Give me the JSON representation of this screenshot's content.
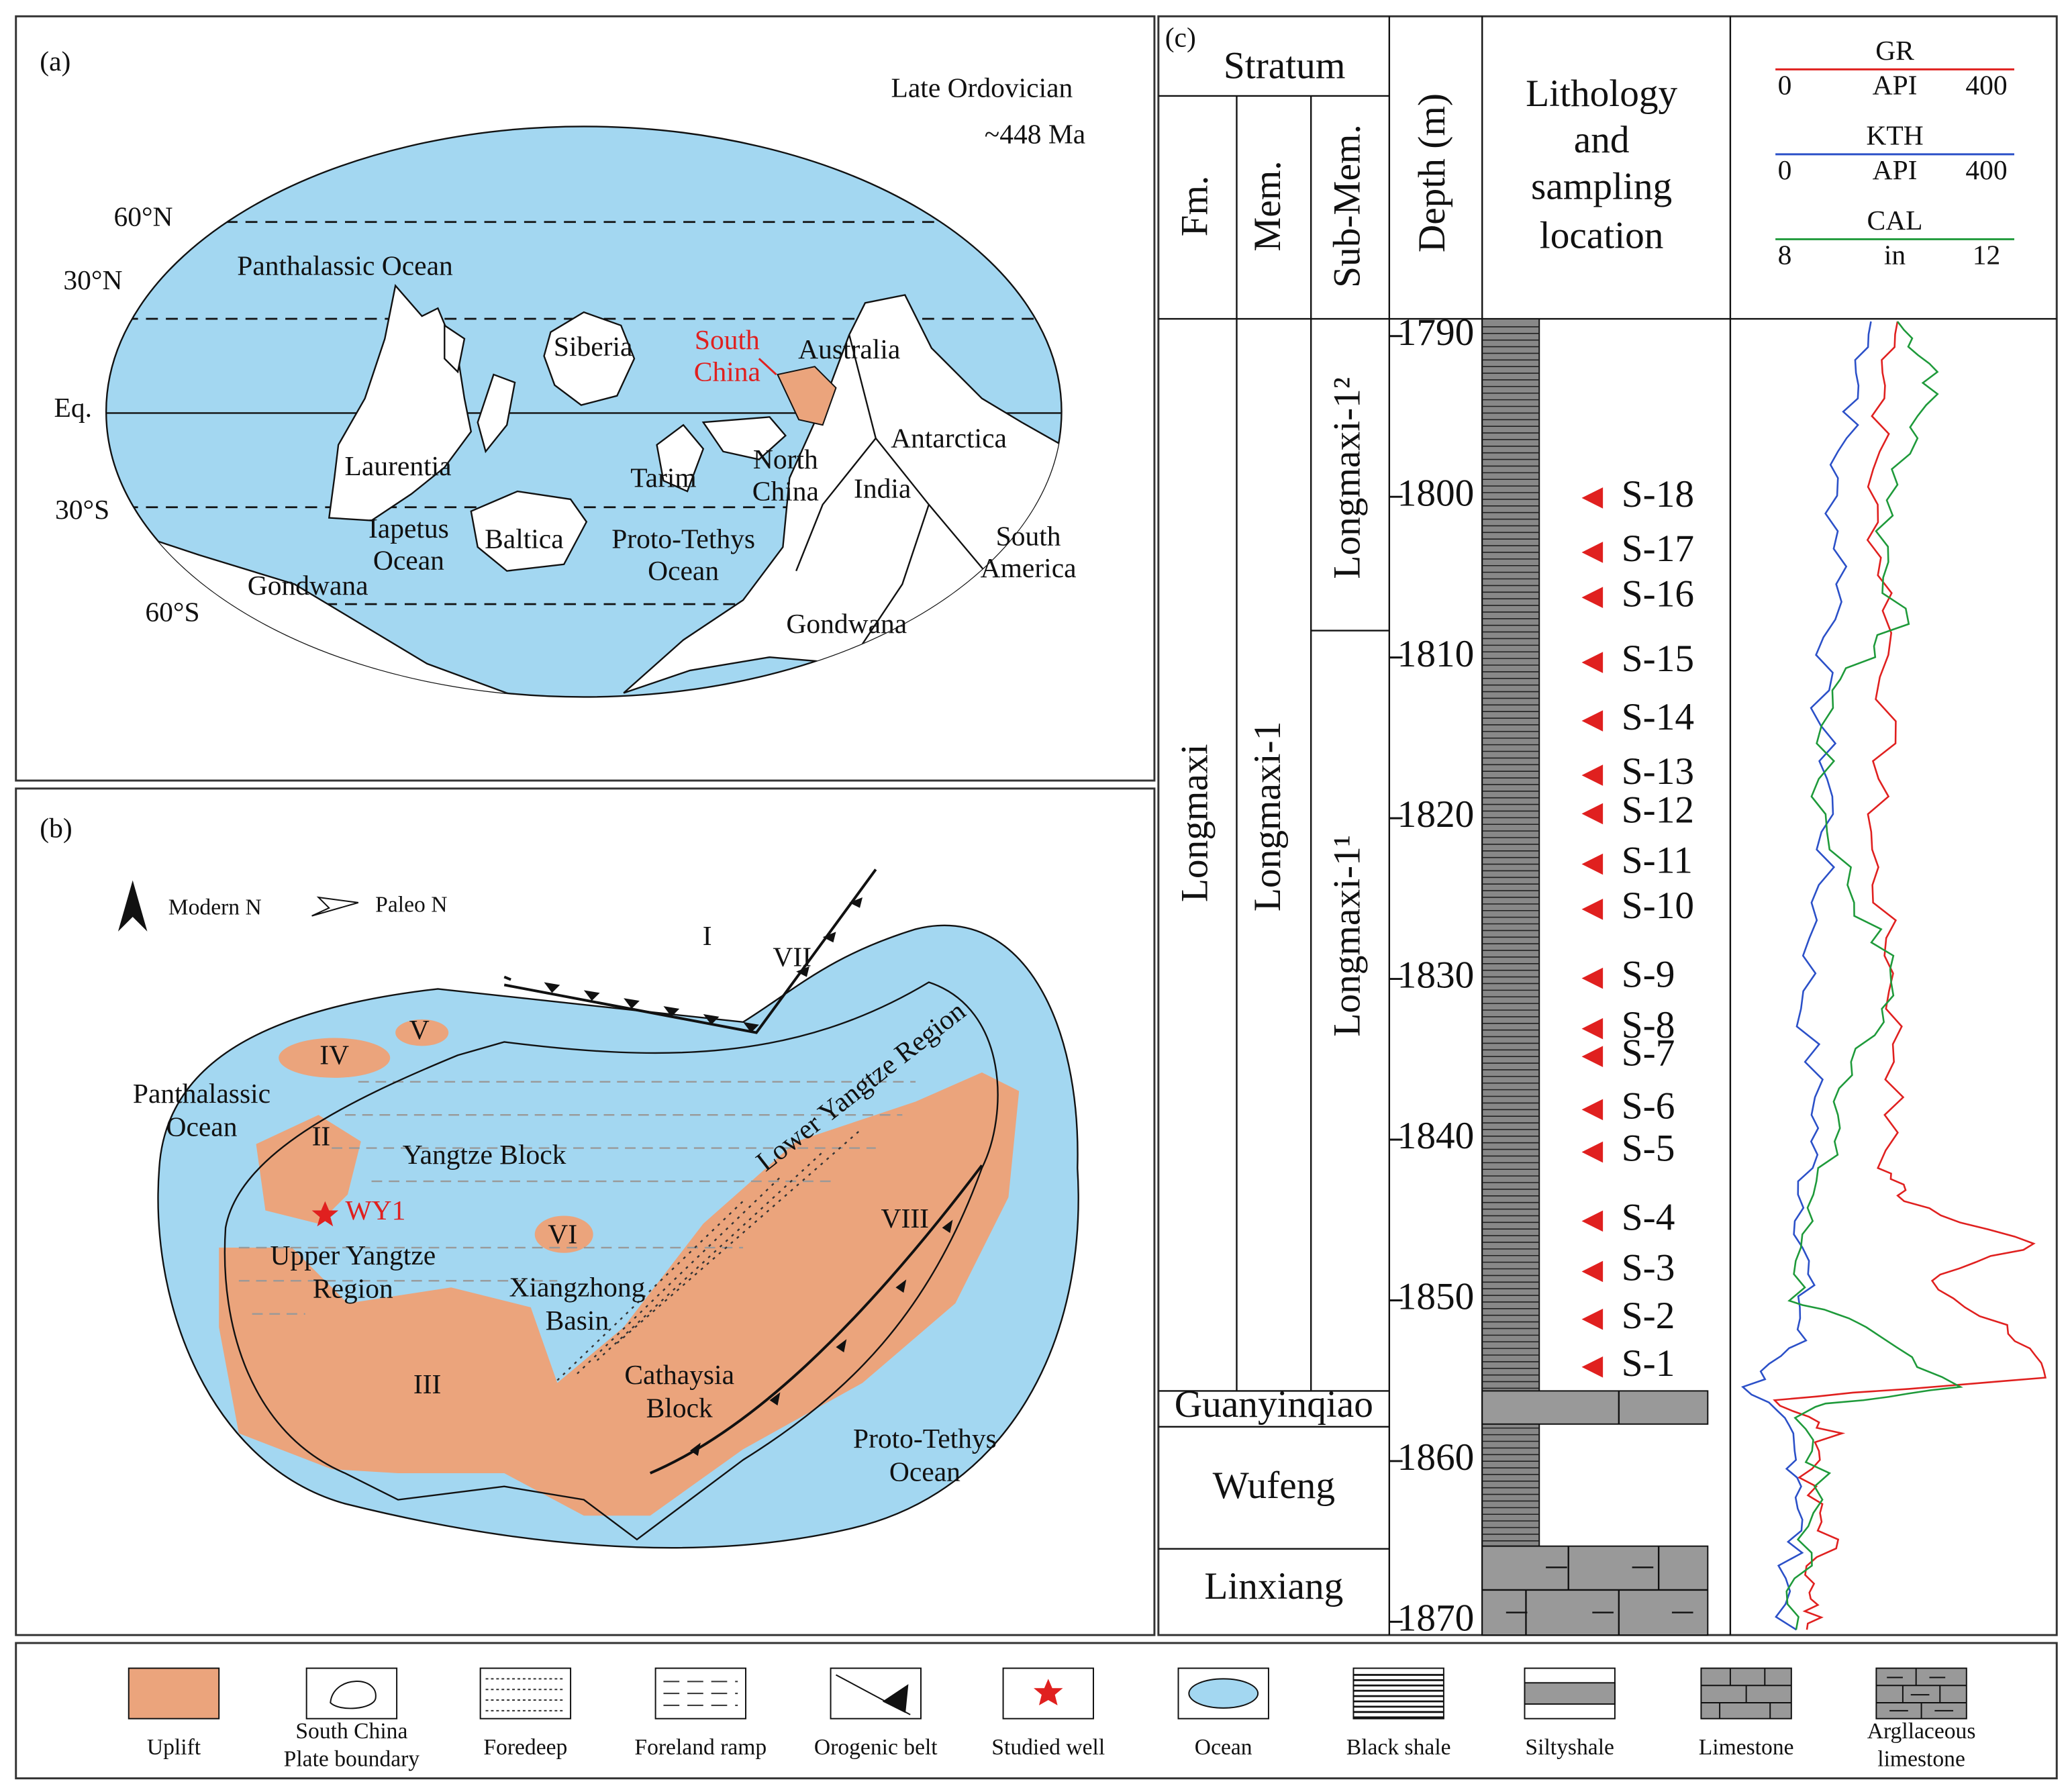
{
  "panel_a": {
    "label": "(a)",
    "period": "Late Ordovician",
    "age": "~448 Ma",
    "latitudes": [
      "60°N",
      "30°N",
      "Eq.",
      "30°S",
      "60°S"
    ],
    "places": [
      [
        "Panthalassic Ocean"
      ],
      [
        "Siberia"
      ],
      [
        "South",
        "China"
      ],
      [
        "Australia"
      ],
      [
        "Laurentia"
      ],
      [
        "Tarim"
      ],
      [
        "North",
        "China"
      ],
      [
        "Antarctica"
      ],
      [
        "India"
      ],
      [
        "Iapetus",
        "Ocean"
      ],
      [
        "Baltica"
      ],
      [
        "Proto-Tethys",
        "Ocean"
      ],
      [
        "South",
        "America"
      ],
      [
        "Gondwana"
      ],
      [
        "Gondwana"
      ]
    ]
  },
  "panel_b": {
    "label": "(b)",
    "labels": [
      [
        "Modern N"
      ],
      [
        "Paleo N"
      ],
      [
        "I"
      ],
      [
        "VII"
      ],
      [
        "IV"
      ],
      [
        "V"
      ],
      [
        "Panthalassic",
        "Ocean"
      ],
      [
        "II"
      ],
      [
        "Yangtze Block"
      ],
      [
        "WY1"
      ],
      [
        "VI"
      ],
      [
        "Upper Yangtze",
        "Region"
      ],
      [
        "Xiangzhong",
        "Basin"
      ],
      [
        "Lower Yangtze Region"
      ],
      [
        "VIII"
      ],
      [
        "III"
      ],
      [
        "Cathaysia",
        "Block"
      ],
      [
        "Proto-Tethys",
        "Ocean"
      ]
    ]
  },
  "panel_c": {
    "label": "(c)",
    "stratum": "Stratum",
    "columns": [
      "Fm.",
      "Mem.",
      "Sub-Mem.",
      "Depth (m)"
    ],
    "lithology_header": [
      "Lithology",
      "and",
      "sampling",
      "location"
    ],
    "formation": "Longmaxi",
    "member": "Longmaxi-1",
    "sub_members": [
      "Longmaxi-1²",
      "Longmaxi-1¹"
    ],
    "lower_formations": [
      "Guanyinqiao",
      "Wufeng",
      "Linxiang"
    ],
    "logs": [
      {
        "name": "GR",
        "color": "#e0201f",
        "min": "0",
        "unit": "API",
        "max": "400"
      },
      {
        "name": "KTH",
        "color": "#2b50c8",
        "min": "0",
        "unit": "API",
        "max": "400"
      },
      {
        "name": "CAL",
        "color": "#1e9a3a",
        "min": "8",
        "unit": "in",
        "max": "12"
      }
    ],
    "depth_ticks": [
      1790,
      1800,
      1810,
      1820,
      1830,
      1840,
      1850,
      1860,
      1870
    ],
    "samples": [
      "S-18",
      "S-17",
      "S-16",
      "S-15",
      "S-14",
      "S-13",
      "S-12",
      "S-11",
      "S-10",
      "S-9",
      "S-8",
      "S-7",
      "S-6",
      "S-5",
      "S-4",
      "S-3",
      "S-2",
      "S-1"
    ]
  },
  "legend": {
    "items": [
      [
        "Uplift"
      ],
      [
        "South China",
        "Plate boundary"
      ],
      [
        "Foredeep"
      ],
      [
        "Foreland ramp"
      ],
      [
        "Orogenic belt"
      ],
      [
        "Studied well"
      ],
      [
        "Ocean"
      ],
      [
        "Black shale"
      ],
      [
        "Siltyshale"
      ],
      [
        "Limestone"
      ],
      [
        "Argllaceous",
        "limestone"
      ]
    ]
  }
}
